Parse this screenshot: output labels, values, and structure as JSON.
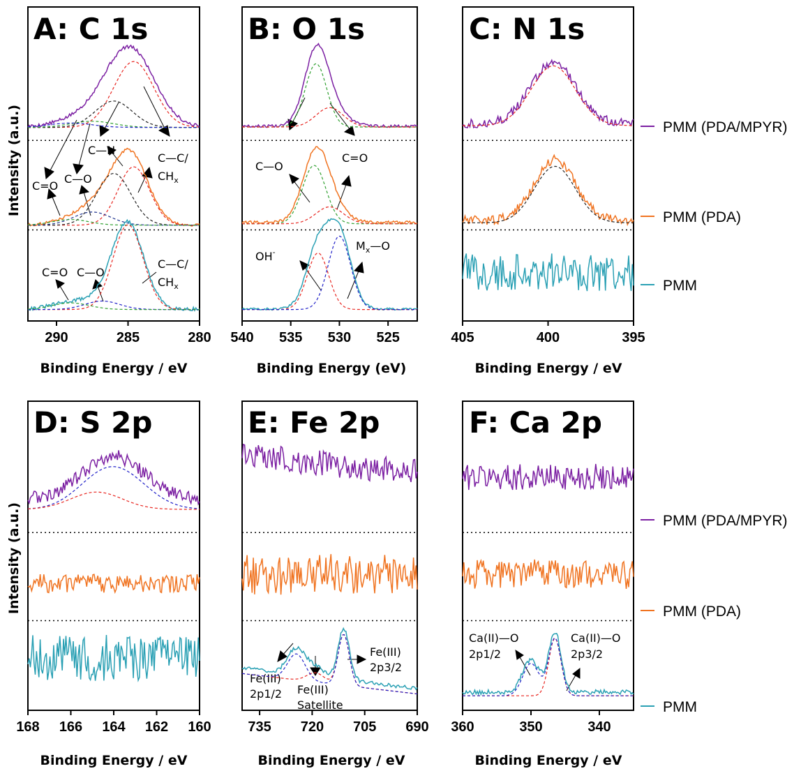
{
  "figure": {
    "legend": [
      {
        "label": "PMM (PDA/MPYR)",
        "color": "#7b1fa2"
      },
      {
        "label": "PMM (PDA)",
        "color": "#f07320"
      },
      {
        "label": "PMM",
        "color": "#2aa0b4"
      }
    ],
    "fit_colors": {
      "red": "#e8251f",
      "green": "#30a030",
      "black": "#222222",
      "blue": "#2020c8",
      "navy": "#1a2f8c"
    },
    "y_axis_label": "Intensity (a.u.)"
  },
  "chart_data": [
    {
      "panel": "A",
      "type": "line",
      "title": "A:  C 1s",
      "xlabel": "Binding Energy / eV",
      "xlim": [
        292,
        280
      ],
      "xticks": [
        290,
        285,
        280
      ],
      "grid": false,
      "series": [
        {
          "name": "PMM (PDA/MPYR)",
          "level": 2,
          "noise": 0.02,
          "baseline": 0.01,
          "peaks": [
            [
              284.6,
              0.78,
              1.6
            ],
            [
              286.2,
              0.2,
              1.4
            ],
            [
              287.5,
              0.07,
              1.5
            ],
            [
              289.0,
              0.05,
              1.5
            ]
          ],
          "fits": [
            {
              "color": "red",
              "peaks": [
                [
                  284.6,
                  0.75,
                  1.4
                ]
              ]
            },
            {
              "color": "black",
              "peaks": [
                [
                  286.0,
                  0.3,
                  1.3
                ]
              ]
            },
            {
              "color": "green",
              "peaks": [
                [
                  287.5,
                  0.07,
                  1.5
                ]
              ]
            },
            {
              "color": "blue",
              "peaks": [
                [
                  289.0,
                  0.05,
                  1.5
                ]
              ]
            }
          ]
        },
        {
          "name": "PMM (PDA)",
          "level": 1,
          "noise": 0.015,
          "baseline": 0.0,
          "peaks": [
            [
              284.7,
              0.62,
              1.2
            ],
            [
              286.0,
              0.25,
              1.3
            ],
            [
              287.5,
              0.1,
              1.3
            ],
            [
              289.0,
              0.05,
              1.3
            ]
          ],
          "fits": [
            {
              "color": "red",
              "peaks": [
                [
                  284.6,
                  0.62,
                  1.1
                ]
              ]
            },
            {
              "color": "black",
              "peaks": [
                [
                  286.0,
                  0.55,
                  1.2
                ]
              ]
            },
            {
              "color": "navy",
              "peaks": [
                [
                  287.5,
                  0.14,
                  1.3
                ]
              ]
            },
            {
              "color": "green",
              "peaks": [
                [
                  289.0,
                  0.06,
                  1.3
                ]
              ]
            }
          ]
        },
        {
          "name": "PMM",
          "level": 0,
          "noise": 0.02,
          "baseline": 0.01,
          "peaks": [
            [
              285.0,
              0.9,
              1.1
            ],
            [
              286.8,
              0.08,
              1.2
            ],
            [
              289.0,
              0.07,
              1.3
            ]
          ],
          "fits": [
            {
              "color": "red",
              "peaks": [
                [
                  285.0,
                  0.9,
                  1.05
                ]
              ]
            },
            {
              "color": "blue",
              "peaks": [
                [
                  286.8,
                  0.09,
                  1.2
                ]
              ]
            },
            {
              "color": "green",
              "peaks": [
                [
                  289.0,
                  0.07,
                  1.3
                ]
              ]
            }
          ]
        }
      ],
      "annotations": [
        "C=O",
        "C—O",
        "C—N",
        "C—C/",
        "CH",
        "x",
        "C=O",
        "C—O",
        "C—C/",
        "CH",
        "x"
      ]
    },
    {
      "panel": "B",
      "type": "line",
      "title": "B:  O 1s",
      "xlabel": "Binding Energy (eV)",
      "xlim": [
        540,
        522
      ],
      "xticks": [
        540,
        535,
        530,
        525
      ],
      "grid": false,
      "series": [
        {
          "name": "PMM (PDA/MPYR)",
          "level": 2,
          "noise": 0.015,
          "baseline": 0.02,
          "peaks": [
            [
              532.4,
              0.78,
              1.2
            ],
            [
              531.0,
              0.22,
              1.5
            ]
          ],
          "fits": [
            {
              "color": "green",
              "peaks": [
                [
                  532.4,
                  0.72,
                  1.1
                ]
              ]
            },
            {
              "color": "red",
              "peaks": [
                [
                  531.0,
                  0.22,
                  1.4
                ]
              ]
            }
          ]
        },
        {
          "name": "PMM (PDA)",
          "level": 1,
          "noise": 0.015,
          "baseline": 0.03,
          "peaks": [
            [
              532.5,
              0.68,
              1.3
            ],
            [
              531.0,
              0.2,
              1.4
            ]
          ],
          "fits": [
            {
              "color": "green",
              "peaks": [
                [
                  532.6,
                  0.62,
                  1.2
                ]
              ]
            },
            {
              "color": "red",
              "peaks": [
                [
                  531.0,
                  0.18,
                  1.4
                ]
              ]
            }
          ]
        },
        {
          "name": "PMM",
          "level": 0,
          "noise": 0.012,
          "baseline": 0.01,
          "peaks": [
            [
              532.2,
              0.65,
              1.2
            ],
            [
              530.0,
              0.78,
              1.2
            ]
          ],
          "fits": [
            {
              "color": "red",
              "peaks": [
                [
                  532.2,
                  0.6,
                  1.1
                ]
              ]
            },
            {
              "color": "blue",
              "peaks": [
                [
                  530.0,
                  0.78,
                  1.15
                ]
              ]
            }
          ]
        }
      ],
      "annotations": [
        "C—O",
        "C=O",
        "C—O",
        "C=O",
        "OH",
        "-",
        "M",
        "x",
        "—O"
      ]
    },
    {
      "panel": "C",
      "type": "line",
      "title": "C:  N 1s",
      "xlabel": "Binding Energy / eV",
      "xlim": [
        405,
        395
      ],
      "xticks": [
        405,
        400,
        395
      ],
      "grid": false,
      "series": [
        {
          "name": "PMM (PDA/MPYR)",
          "level": 2,
          "noise": 0.05,
          "baseline": 0.05,
          "peaks": [
            [
              399.7,
              0.7,
              1.3
            ]
          ],
          "fits": [
            {
              "color": "red",
              "peaks": [
                [
                  399.7,
                  0.68,
                  1.3
                ]
              ]
            }
          ]
        },
        {
          "name": "PMM (PDA)",
          "level": 1,
          "noise": 0.05,
          "baseline": 0.05,
          "peaks": [
            [
              399.6,
              0.65,
              1.2
            ]
          ],
          "fits": [
            {
              "color": "black",
              "peaks": [
                [
                  399.6,
                  0.6,
                  1.2
                ]
              ]
            }
          ]
        },
        {
          "name": "PMM",
          "level": 0,
          "noise": 0.2,
          "baseline": 0.4,
          "peaks": [],
          "fits": []
        }
      ],
      "annotations": []
    },
    {
      "panel": "D",
      "type": "line",
      "title": "D:  S 2p",
      "xlabel": "Binding Energy / eV",
      "xlim": [
        168,
        160
      ],
      "xticks": [
        168,
        166,
        164,
        162,
        160
      ],
      "grid": false,
      "series": [
        {
          "name": "PMM (PDA/MPYR)",
          "level": 2,
          "noise": 0.08,
          "baseline": 0.25,
          "peaks": [
            [
              163.6,
              0.35,
              1.3
            ],
            [
              164.8,
              0.2,
              1.2
            ]
          ],
          "fits": [
            {
              "color": "blue",
              "peaks": [
                [
                  163.6,
                  0.35,
                  1.3
                ],
                [
                  164.8,
                  0.2,
                  1.2
                ]
              ]
            },
            {
              "color": "red",
              "peaks": [
                [
                  164.8,
                  0.2,
                  1.2
                ]
              ]
            }
          ]
        },
        {
          "name": "PMM (PDA)",
          "level": 1,
          "noise": 0.1,
          "baseline": 0.35,
          "peaks": [],
          "fits": []
        },
        {
          "name": "PMM",
          "level": 0,
          "noise": 0.25,
          "baseline": 0.45,
          "peaks": [],
          "fits": []
        }
      ],
      "annotations": []
    },
    {
      "panel": "E",
      "type": "line",
      "title": "E: Fe 2p",
      "xlabel": "Binding Energy / eV",
      "xlim": [
        740,
        690
      ],
      "xticks": [
        735,
        720,
        705,
        690
      ],
      "grid": false,
      "series": [
        {
          "name": "PMM (PDA/MPYR)",
          "level": 2,
          "noise": 0.15,
          "baseline": 0.55,
          "slope": 0.2,
          "peaks": [],
          "fits": []
        },
        {
          "name": "PMM (PDA)",
          "level": 1,
          "noise": 0.22,
          "baseline": 0.45,
          "peaks": [],
          "fits": []
        },
        {
          "name": "PMM",
          "level": 0,
          "noise": 0.02,
          "baseline": 0.12,
          "slope": 0.22,
          "peaks": [
            [
              724.5,
              0.28,
              2.5
            ],
            [
              711.0,
              0.55,
              1.6
            ],
            [
              719.0,
              0.1,
              2.5
            ]
          ],
          "fits": [
            {
              "color": "red",
              "peaks": [
                [
                  711.0,
                  0.55,
                  1.6
                ],
                [
                  719.0,
                  0.1,
                  2.5
                ]
              ]
            },
            {
              "color": "blue",
              "peaks": [
                [
                  724.5,
                  0.28,
                  2.5
                ],
                [
                  711.0,
                  0.55,
                  1.6
                ]
              ]
            }
          ]
        }
      ],
      "annotations": [
        "Fe(III)",
        "2p3/2",
        "Fe(III)",
        "2p1/2",
        "Fe(III)",
        "Satellite"
      ]
    },
    {
      "panel": "F",
      "type": "line",
      "title": "F: Ca 2p",
      "xlabel": "Binding Energy / eV",
      "xlim": [
        360,
        335
      ],
      "xticks": [
        360,
        350,
        340
      ],
      "grid": false,
      "series": [
        {
          "name": "PMM (PDA/MPYR)",
          "level": 2,
          "noise": 0.15,
          "baseline": 0.5,
          "peaks": [],
          "fits": []
        },
        {
          "name": "PMM (PDA)",
          "level": 1,
          "noise": 0.16,
          "baseline": 0.45,
          "peaks": [],
          "fits": []
        },
        {
          "name": "PMM",
          "level": 0,
          "noise": 0.025,
          "baseline": 0.08,
          "peaks": [
            [
              346.5,
              0.65,
              0.9
            ],
            [
              350.0,
              0.35,
              1.2
            ]
          ],
          "fits": [
            {
              "color": "red",
              "peaks": [
                [
                  346.5,
                  0.62,
                  0.9
                ]
              ]
            },
            {
              "color": "blue",
              "peaks": [
                [
                  350.0,
                  0.35,
                  1.2
                ],
                [
                  346.5,
                  0.62,
                  0.9
                ]
              ]
            }
          ]
        }
      ],
      "annotations": [
        "Ca(II)—O",
        "2p1/2",
        "Ca(II)—O",
        "2p3/2"
      ]
    }
  ]
}
